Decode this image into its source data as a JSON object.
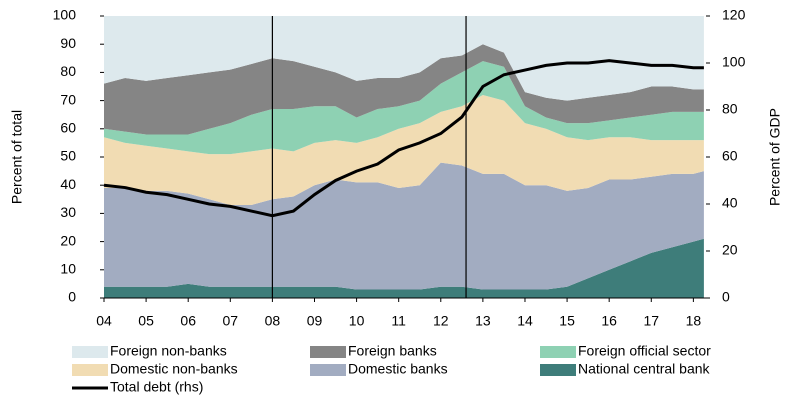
{
  "chart_data": {
    "type": "stacked_area_line",
    "x": [
      2004,
      2004.5,
      2005,
      2005.5,
      2006,
      2006.5,
      2007,
      2007.5,
      2008,
      2008.5,
      2009,
      2009.5,
      2010,
      2010.5,
      2011,
      2011.5,
      2012,
      2012.5,
      2013,
      2013.5,
      2014,
      2014.5,
      2015,
      2015.5,
      2016,
      2016.5,
      2017,
      2017.5,
      2018,
      2018.25
    ],
    "series": [
      {
        "name": "Foreign non-banks",
        "color": "#dde9ed",
        "values": [
          24,
          22,
          23,
          22,
          21,
          20,
          19,
          17,
          15,
          16,
          18,
          20,
          23,
          22,
          22,
          20,
          15,
          14,
          10,
          13,
          27,
          29,
          30,
          29,
          28,
          27,
          25,
          25,
          26,
          26
        ]
      },
      {
        "name": "Foreign banks",
        "color": "#858585",
        "values": [
          16,
          19,
          19,
          20,
          21,
          20,
          19,
          18,
          18,
          17,
          14,
          12,
          13,
          11,
          10,
          10,
          9,
          6,
          6,
          5,
          5,
          7,
          8,
          9,
          9,
          9,
          10,
          9,
          8,
          8
        ]
      },
      {
        "name": "Foreign official sector",
        "color": "#8ed1b3",
        "values": [
          3,
          4,
          4,
          5,
          6,
          9,
          11,
          13,
          14,
          15,
          13,
          12,
          9,
          10,
          8,
          8,
          10,
          12,
          12,
          12,
          6,
          4,
          5,
          6,
          6,
          7,
          9,
          10,
          10,
          10
        ]
      },
      {
        "name": "Domestic non-banks",
        "color": "#f1dcb3",
        "values": [
          18,
          16,
          16,
          15,
          15,
          16,
          18,
          19,
          18,
          16,
          15,
          14,
          14,
          16,
          21,
          22,
          18,
          21,
          28,
          26,
          22,
          20,
          19,
          17,
          15,
          15,
          13,
          12,
          12,
          11
        ]
      },
      {
        "name": "Domestic banks",
        "color": "#a2acc1",
        "values": [
          35,
          35,
          34,
          34,
          32,
          31,
          29,
          29,
          31,
          32,
          36,
          38,
          38,
          38,
          36,
          37,
          44,
          43,
          41,
          41,
          37,
          37,
          34,
          32,
          32,
          29,
          27,
          26,
          24,
          24
        ]
      },
      {
        "name": "National central bank",
        "color": "#3e7d7a",
        "values": [
          4,
          4,
          4,
          4,
          5,
          4,
          4,
          4,
          4,
          4,
          4,
          4,
          3,
          3,
          3,
          3,
          4,
          4,
          3,
          3,
          3,
          3,
          4,
          7,
          10,
          13,
          16,
          18,
          20,
          21
        ]
      },
      {
        "name": "Total debt (rhs)",
        "color": "#000000",
        "axis": "y2",
        "values": [
          48,
          47,
          45,
          44,
          42,
          40,
          39,
          37,
          35,
          37,
          44,
          50,
          54,
          57,
          63,
          66,
          70,
          77,
          90,
          95,
          97,
          99,
          100,
          100,
          101,
          100,
          99,
          99,
          98,
          98
        ]
      }
    ],
    "ylabel": "Percent of total",
    "y2label": "Percent of GDP",
    "xlim": [
      2004,
      2018.3
    ],
    "xticks": [
      {
        "value": 2004,
        "label": "04"
      },
      {
        "value": 2005,
        "label": "05"
      },
      {
        "value": 2006,
        "label": "06"
      },
      {
        "value": 2007,
        "label": "07"
      },
      {
        "value": 2008,
        "label": "08"
      },
      {
        "value": 2009,
        "label": "09"
      },
      {
        "value": 2010,
        "label": "10"
      },
      {
        "value": 2011,
        "label": "11"
      },
      {
        "value": 2012,
        "label": "12"
      },
      {
        "value": 2013,
        "label": "13"
      },
      {
        "value": 2014,
        "label": "14"
      },
      {
        "value": 2015,
        "label": "15"
      },
      {
        "value": 2016,
        "label": "16"
      },
      {
        "value": 2017,
        "label": "17"
      },
      {
        "value": 2018,
        "label": "18"
      }
    ],
    "ylim": [
      0,
      100
    ],
    "yticks": [
      0,
      10,
      20,
      30,
      40,
      50,
      60,
      70,
      80,
      90,
      100
    ],
    "y2lim": [
      0,
      120
    ],
    "y2ticks": [
      0,
      20,
      40,
      60,
      80,
      100,
      120
    ],
    "vlines": [
      2008,
      2012.6
    ]
  }
}
